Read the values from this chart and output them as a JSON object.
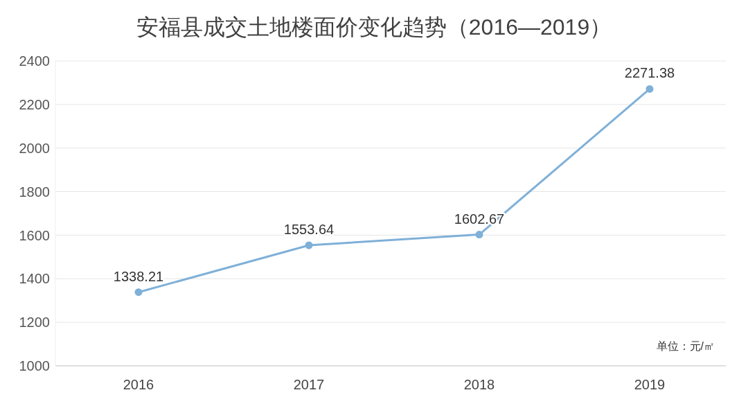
{
  "chart_data": {
    "type": "line",
    "title": "安福县成交土地楼面价变化趋势（2016—2019）",
    "categories": [
      "2016",
      "2017",
      "2018",
      "2019"
    ],
    "series": [
      {
        "color": "#7fb0d8",
        "values": [
          1338.21,
          1553.64,
          1602.67,
          2271.38
        ]
      }
    ],
    "ylim": [
      1000,
      2400
    ],
    "yticks": [
      1000,
      1200,
      1400,
      1600,
      1800,
      2000,
      2200,
      2400
    ],
    "grid": "y",
    "marker": "circle",
    "line_style": "solid",
    "data_labels": true,
    "legend": false,
    "annotations": [
      "单位：元/㎡"
    ]
  }
}
